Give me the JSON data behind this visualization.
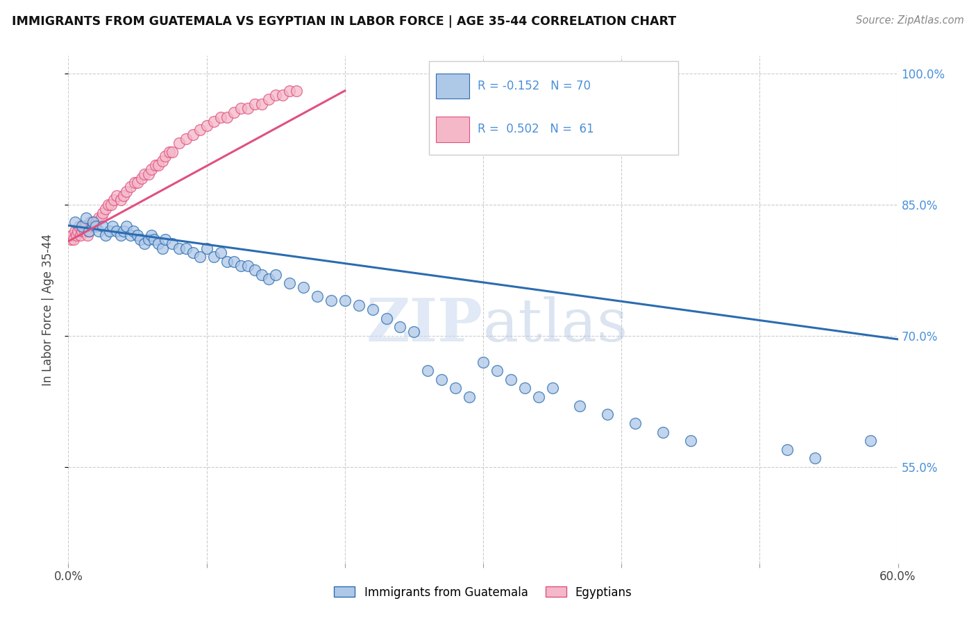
{
  "title": "IMMIGRANTS FROM GUATEMALA VS EGYPTIAN IN LABOR FORCE | AGE 35-44 CORRELATION CHART",
  "source": "Source: ZipAtlas.com",
  "ylabel": "In Labor Force | Age 35-44",
  "legend_label1": "Immigrants from Guatemala",
  "legend_label2": "Egyptians",
  "R1": -0.152,
  "N1": 70,
  "R2": 0.502,
  "N2": 61,
  "xlim": [
    0.0,
    0.6
  ],
  "ylim": [
    0.44,
    1.02
  ],
  "x_ticks": [
    0.0,
    0.1,
    0.2,
    0.3,
    0.4,
    0.5,
    0.6
  ],
  "x_tick_labels": [
    "0.0%",
    "",
    "",
    "",
    "",
    "",
    "60.0%"
  ],
  "y_ticks": [
    0.55,
    0.7,
    0.85,
    1.0
  ],
  "y_tick_labels": [
    "55.0%",
    "70.0%",
    "85.0%",
    "100.0%"
  ],
  "color_blue": "#aec8e8",
  "color_pink": "#f4b8c8",
  "color_blue_line": "#2b6cb0",
  "color_pink_line": "#e05080",
  "background_color": "#ffffff",
  "blue_x": [
    0.005,
    0.01,
    0.013,
    0.015,
    0.018,
    0.02,
    0.022,
    0.025,
    0.027,
    0.03,
    0.032,
    0.035,
    0.038,
    0.04,
    0.042,
    0.045,
    0.047,
    0.05,
    0.052,
    0.055,
    0.058,
    0.06,
    0.062,
    0.065,
    0.068,
    0.07,
    0.075,
    0.08,
    0.085,
    0.09,
    0.095,
    0.1,
    0.105,
    0.11,
    0.115,
    0.12,
    0.125,
    0.13,
    0.135,
    0.14,
    0.145,
    0.15,
    0.16,
    0.17,
    0.18,
    0.19,
    0.2,
    0.21,
    0.22,
    0.23,
    0.24,
    0.25,
    0.26,
    0.27,
    0.28,
    0.29,
    0.3,
    0.31,
    0.32,
    0.33,
    0.34,
    0.35,
    0.37,
    0.39,
    0.41,
    0.43,
    0.45,
    0.52,
    0.54,
    0.58
  ],
  "blue_y": [
    0.83,
    0.825,
    0.835,
    0.82,
    0.83,
    0.825,
    0.82,
    0.825,
    0.815,
    0.82,
    0.825,
    0.82,
    0.815,
    0.82,
    0.825,
    0.815,
    0.82,
    0.815,
    0.81,
    0.805,
    0.81,
    0.815,
    0.81,
    0.805,
    0.8,
    0.81,
    0.805,
    0.8,
    0.8,
    0.795,
    0.79,
    0.8,
    0.79,
    0.795,
    0.785,
    0.785,
    0.78,
    0.78,
    0.775,
    0.77,
    0.765,
    0.77,
    0.76,
    0.755,
    0.745,
    0.74,
    0.74,
    0.735,
    0.73,
    0.72,
    0.71,
    0.705,
    0.66,
    0.65,
    0.64,
    0.63,
    0.67,
    0.66,
    0.65,
    0.64,
    0.63,
    0.64,
    0.62,
    0.61,
    0.6,
    0.59,
    0.58,
    0.57,
    0.56,
    0.58
  ],
  "pink_x": [
    0.002,
    0.003,
    0.004,
    0.005,
    0.006,
    0.007,
    0.008,
    0.009,
    0.01,
    0.011,
    0.012,
    0.013,
    0.014,
    0.015,
    0.016,
    0.017,
    0.018,
    0.019,
    0.02,
    0.022,
    0.024,
    0.025,
    0.027,
    0.029,
    0.031,
    0.033,
    0.035,
    0.038,
    0.04,
    0.042,
    0.045,
    0.048,
    0.05,
    0.053,
    0.055,
    0.058,
    0.06,
    0.063,
    0.065,
    0.068,
    0.07,
    0.073,
    0.075,
    0.08,
    0.085,
    0.09,
    0.095,
    0.1,
    0.105,
    0.11,
    0.115,
    0.12,
    0.125,
    0.13,
    0.135,
    0.14,
    0.145,
    0.15,
    0.155,
    0.16,
    0.165
  ],
  "pink_y": [
    0.81,
    0.815,
    0.81,
    0.82,
    0.815,
    0.82,
    0.825,
    0.815,
    0.82,
    0.825,
    0.82,
    0.825,
    0.815,
    0.82,
    0.83,
    0.825,
    0.83,
    0.825,
    0.83,
    0.835,
    0.835,
    0.84,
    0.845,
    0.85,
    0.85,
    0.855,
    0.86,
    0.855,
    0.86,
    0.865,
    0.87,
    0.875,
    0.875,
    0.88,
    0.885,
    0.885,
    0.89,
    0.895,
    0.895,
    0.9,
    0.905,
    0.91,
    0.91,
    0.92,
    0.925,
    0.93,
    0.935,
    0.94,
    0.945,
    0.95,
    0.95,
    0.955,
    0.96,
    0.96,
    0.965,
    0.965,
    0.97,
    0.975,
    0.975,
    0.98,
    0.98
  ],
  "blue_line_x": [
    0.0,
    0.6
  ],
  "blue_line_y": [
    0.826,
    0.696
  ],
  "pink_line_x": [
    0.0,
    0.2
  ],
  "pink_line_y": [
    0.808,
    0.98
  ]
}
